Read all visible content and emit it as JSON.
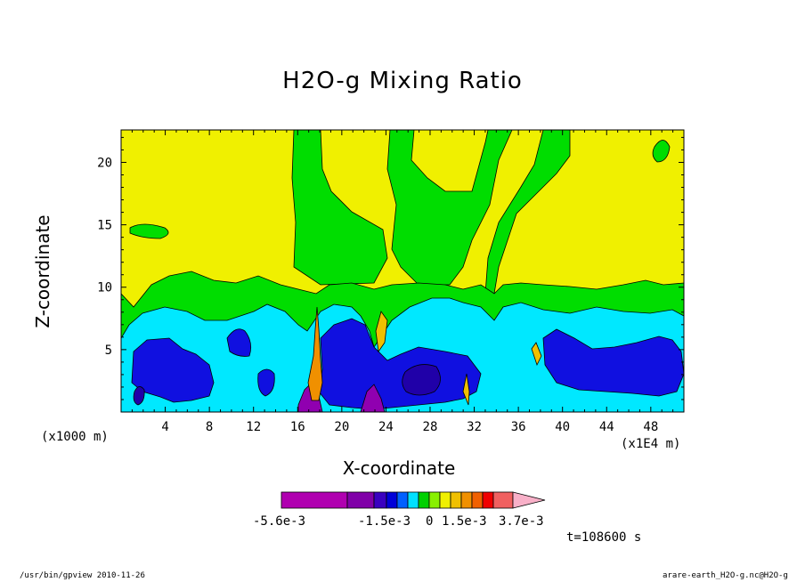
{
  "chart_data": {
    "type": "heatmap",
    "title": "H2O-g Mixing Ratio",
    "xlabel": "X-coordinate",
    "ylabel": "Z-coordinate",
    "x_unit_note": "(x1000 m)",
    "x_scale_note": "(x1E4 m)",
    "time_label": "t=108600 s",
    "x_range": [
      0,
      51
    ],
    "y_range": [
      0,
      22.6
    ],
    "x_ticks": [
      4,
      8,
      12,
      16,
      20,
      24,
      28,
      32,
      36,
      40,
      44,
      48
    ],
    "y_ticks": [
      5,
      10,
      15,
      20
    ],
    "colorbar": {
      "labels": [
        "-5.6e-3",
        "-1.5e-3",
        "0",
        "1.5e-3",
        "3.7e-3"
      ],
      "colors": [
        "#b000b0",
        "#b000b0",
        "#8000a8",
        "#3a00c0",
        "#0000d8",
        "#0060ff",
        "#00e0ff",
        "#00d000",
        "#88f000",
        "#f0f000",
        "#f0c000",
        "#f09000",
        "#f06000",
        "#f00000",
        "#f06060",
        "#f8b0c8"
      ]
    },
    "colors": {
      "yellow": "#f0f000",
      "green": "#00dd00",
      "light_green": "#88f000",
      "cyan": "#00e8ff",
      "blue": "#1010e0",
      "navy": "#2000a8",
      "purple": "#9000b0",
      "orange": "#f09000",
      "gold": "#f0c000"
    }
  },
  "footer": {
    "left": "/usr/bin/gpview  2010-11-26",
    "right": "arare-earth_H2O-g.nc@H2O-g"
  }
}
